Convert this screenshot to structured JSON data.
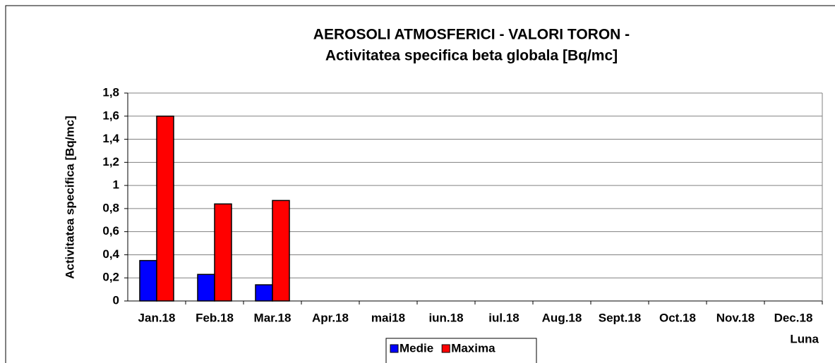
{
  "chart_data": {
    "type": "bar",
    "title": [
      "AEROSOLI ATMOSFERICI - VALORI TORON -",
      "Activitatea specifica beta globala [Bq/mc]"
    ],
    "y_label": "Activitatea specifica [Bq/mc]",
    "x_label": "Luna",
    "categories": [
      "Jan.18",
      "Feb.18",
      "Mar.18",
      "Apr.18",
      "mai18",
      "iun.18",
      "iul.18",
      "Aug.18",
      "Sept.18",
      "Oct.18",
      "Nov.18",
      "Dec.18"
    ],
    "series": [
      {
        "name": "Medie",
        "color": "#0000ff",
        "values": [
          0.35,
          0.23,
          0.14,
          null,
          null,
          null,
          null,
          null,
          null,
          null,
          null,
          null
        ]
      },
      {
        "name": "Maxima",
        "color": "#ff0000",
        "values": [
          1.6,
          0.84,
          0.87,
          null,
          null,
          null,
          null,
          null,
          null,
          null,
          null,
          null
        ]
      }
    ],
    "ylim": [
      0,
      1.8
    ],
    "yticks": [
      0,
      {
        "value": 0.2,
        "label": "0,2"
      },
      {
        "value": 0.4,
        "label": "0,4"
      },
      {
        "value": 0.6,
        "label": "0,6"
      },
      {
        "value": 0.8,
        "label": "0,8"
      },
      1,
      {
        "value": 1.2,
        "label": "1,2"
      },
      {
        "value": 1.4,
        "label": "1,4"
      },
      {
        "value": 1.6,
        "label": "1,6"
      },
      {
        "value": 1.8,
        "label": "1,8"
      }
    ],
    "grid": true,
    "legend": "bottom"
  }
}
